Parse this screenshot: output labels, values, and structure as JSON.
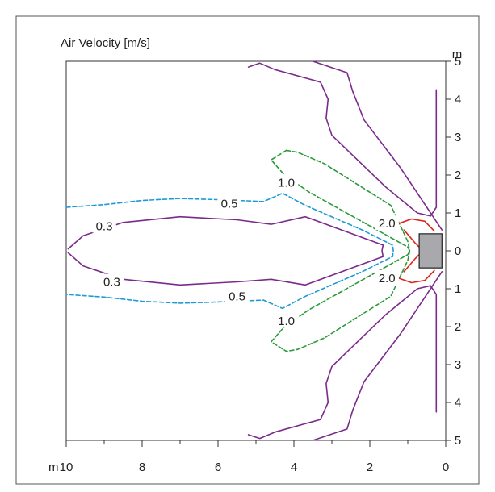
{
  "chart_data": {
    "type": "contour",
    "title": "Air Velocity [m/s]",
    "x_unit": "m",
    "y_unit": "m",
    "xlim": [
      10,
      0
    ],
    "ylim": [
      -5,
      5
    ],
    "x_ticks": [
      {
        "value": 10,
        "label": "10"
      },
      {
        "value": 8,
        "label": "8"
      },
      {
        "value": 6,
        "label": "6"
      },
      {
        "value": 4,
        "label": "4"
      },
      {
        "value": 2,
        "label": "2"
      },
      {
        "value": 0,
        "label": "0"
      }
    ],
    "y_ticks": [
      {
        "value": 5,
        "label": "5"
      },
      {
        "value": 4,
        "label": "4"
      },
      {
        "value": 3,
        "label": "3"
      },
      {
        "value": 2,
        "label": "2"
      },
      {
        "value": 1,
        "label": "1"
      },
      {
        "value": 0,
        "label": "0"
      },
      {
        "value": -1,
        "label": "1"
      },
      {
        "value": -2,
        "label": "2"
      },
      {
        "value": -3,
        "label": "3"
      },
      {
        "value": -4,
        "label": "4"
      },
      {
        "value": -5,
        "label": "5"
      }
    ],
    "colors": {
      "0.3": "#7b2a8c",
      "0.5": "#1d9bd6",
      "1.0": "#2a9a3a",
      "2.0": "#e0241b",
      "source": "#a9a9ad"
    },
    "source_box": {
      "x": [
        0.1,
        0.7
      ],
      "y": [
        -0.45,
        0.45
      ]
    },
    "contours": [
      {
        "level": "0.3",
        "style": "solid",
        "label": "0.3",
        "label_points": [
          [
            9.0,
            0.65
          ],
          [
            8.8,
            -0.82
          ]
        ],
        "paths": [
          [
            [
              9.95,
              0.05
            ],
            [
              9.55,
              0.4
            ],
            [
              8.5,
              0.75
            ],
            [
              7.0,
              0.9
            ],
            [
              5.5,
              0.82
            ],
            [
              4.6,
              0.7
            ],
            [
              3.7,
              0.9
            ],
            [
              1.65,
              0.15
            ],
            [
              1.68,
              0.0
            ],
            [
              1.65,
              -0.15
            ],
            [
              3.7,
              -0.9
            ],
            [
              4.6,
              -0.75
            ],
            [
              5.5,
              -0.82
            ],
            [
              7.0,
              -0.9
            ],
            [
              8.5,
              -0.75
            ],
            [
              9.55,
              -0.4
            ],
            [
              9.95,
              -0.05
            ]
          ],
          [
            [
              5.2,
              4.85
            ],
            [
              4.9,
              4.95
            ],
            [
              4.5,
              4.78
            ],
            [
              3.3,
              4.45
            ],
            [
              3.1,
              4.0
            ],
            [
              3.15,
              3.5
            ],
            [
              3.0,
              3.05
            ],
            [
              1.6,
              1.7
            ],
            [
              0.75,
              1.0
            ],
            [
              0.4,
              0.92
            ],
            [
              0.25,
              1.15
            ],
            [
              0.25,
              4.25
            ]
          ],
          [
            [
              5.2,
              -4.85
            ],
            [
              4.9,
              -4.95
            ],
            [
              4.5,
              -4.78
            ],
            [
              3.3,
              -4.45
            ],
            [
              3.1,
              -4.0
            ],
            [
              3.15,
              -3.5
            ],
            [
              3.0,
              -3.05
            ],
            [
              1.6,
              -1.7
            ],
            [
              0.75,
              -1.0
            ],
            [
              0.4,
              -0.92
            ],
            [
              0.25,
              -1.15
            ],
            [
              0.25,
              -4.25
            ]
          ],
          [
            [
              3.5,
              5.0
            ],
            [
              2.6,
              4.7
            ],
            [
              2.45,
              4.2
            ],
            [
              2.15,
              3.45
            ],
            [
              1.2,
              2.2
            ],
            [
              0.1,
              0.55
            ]
          ],
          [
            [
              3.5,
              -5.0
            ],
            [
              2.6,
              -4.7
            ],
            [
              2.45,
              -4.2
            ],
            [
              2.15,
              -3.45
            ],
            [
              1.2,
              -2.2
            ],
            [
              0.1,
              -0.55
            ]
          ]
        ]
      },
      {
        "level": "0.5",
        "style": "dashed",
        "label": "0.5",
        "label_points": [
          [
            5.7,
            1.25
          ],
          [
            5.5,
            -1.2
          ]
        ],
        "paths": [
          [
            [
              10.0,
              1.15
            ],
            [
              9.0,
              1.22
            ],
            [
              8.0,
              1.33
            ],
            [
              7.0,
              1.38
            ],
            [
              6.0,
              1.35
            ],
            [
              4.8,
              1.3
            ],
            [
              4.3,
              1.52
            ],
            [
              3.7,
              1.2
            ],
            [
              2.2,
              0.55
            ],
            [
              1.4,
              0.15
            ],
            [
              1.38,
              0.0
            ],
            [
              1.4,
              -0.15
            ],
            [
              2.2,
              -0.55
            ],
            [
              3.7,
              -1.2
            ],
            [
              4.3,
              -1.52
            ],
            [
              4.8,
              -1.3
            ],
            [
              6.0,
              -1.35
            ],
            [
              7.0,
              -1.38
            ],
            [
              8.0,
              -1.33
            ],
            [
              9.0,
              -1.22
            ],
            [
              10.0,
              -1.15
            ]
          ]
        ]
      },
      {
        "level": "1.0",
        "style": "dashed",
        "label": "1.0",
        "label_points": [
          [
            4.2,
            1.8
          ],
          [
            4.2,
            -1.85
          ]
        ],
        "paths": [
          [
            [
              4.2,
              2.65
            ],
            [
              3.9,
              2.6
            ],
            [
              3.2,
              2.3
            ],
            [
              1.45,
              1.2
            ],
            [
              1.0,
              0.25
            ],
            [
              0.95,
              0.0
            ],
            [
              1.0,
              -0.25
            ],
            [
              1.45,
              -1.2
            ],
            [
              3.2,
              -2.3
            ],
            [
              3.9,
              -2.6
            ],
            [
              4.2,
              -2.65
            ]
          ],
          [
            [
              4.2,
              2.65
            ],
            [
              4.6,
              2.4
            ],
            [
              4.25,
              2.0
            ],
            [
              3.6,
              1.55
            ],
            [
              1.0,
              0.1
            ],
            [
              0.95,
              0.0
            ],
            [
              1.0,
              -0.1
            ],
            [
              3.6,
              -1.55
            ],
            [
              4.25,
              -2.0
            ],
            [
              4.6,
              -2.4
            ],
            [
              4.2,
              -2.65
            ]
          ]
        ]
      },
      {
        "level": "2.0",
        "style": "solid",
        "label": "2.0",
        "label_points": [
          [
            1.55,
            0.72
          ],
          [
            1.55,
            -0.72
          ]
        ],
        "paths": [
          [
            [
              1.1,
              0.55
            ],
            [
              0.8,
              0.2
            ],
            [
              0.6,
              0.0
            ],
            [
              0.8,
              -0.2
            ],
            [
              1.1,
              -0.55
            ]
          ],
          [
            [
              1.25,
              0.72
            ],
            [
              0.9,
              0.84
            ],
            [
              0.55,
              0.78
            ],
            [
              0.3,
              0.52
            ]
          ],
          [
            [
              1.25,
              -0.72
            ],
            [
              0.9,
              -0.84
            ],
            [
              0.55,
              -0.78
            ],
            [
              0.3,
              -0.52
            ]
          ]
        ]
      }
    ]
  }
}
